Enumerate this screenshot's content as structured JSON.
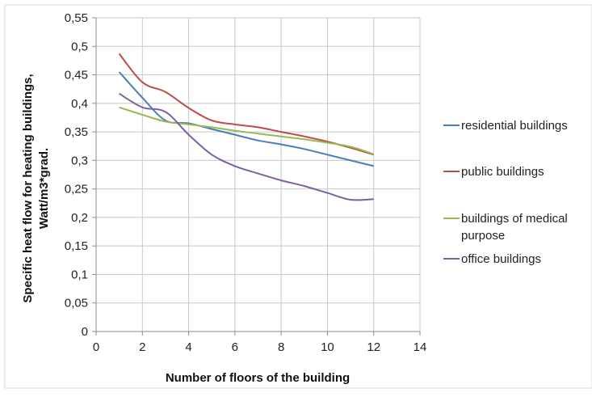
{
  "chart_data": {
    "type": "line",
    "title": "",
    "xlabel": "Number of floors of the building",
    "ylabel_lines": [
      "Specific heat flow for heating buildings,",
      "Watt/m3*grad."
    ],
    "xlim": [
      0,
      14
    ],
    "ylim": [
      0,
      0.55
    ],
    "x_ticks": [
      0,
      2,
      4,
      6,
      8,
      10,
      12,
      14
    ],
    "y_ticks": [
      0,
      0.05,
      0.1,
      0.15,
      0.2,
      0.25,
      0.3,
      0.35,
      0.4,
      0.45,
      0.5,
      0.55
    ],
    "x_tick_labels": [
      "0",
      "2",
      "4",
      "6",
      "8",
      "10",
      "12",
      "14"
    ],
    "y_tick_labels": [
      "0",
      "0,05",
      "0,1",
      "0,15",
      "0,2",
      "0,25",
      "0,3",
      "0,35",
      "0,4",
      "0,45",
      "0,5",
      "0,55"
    ],
    "grid": "horizontal and vertical",
    "legend_position": "right",
    "series": [
      {
        "name": "residential buildings",
        "color": "#4a7ebb",
        "x": [
          1,
          2,
          3,
          4,
          5,
          6,
          7,
          8,
          9,
          10,
          11,
          12
        ],
        "y": [
          0.455,
          0.41,
          0.37,
          0.365,
          0.355,
          0.345,
          0.335,
          0.328,
          0.32,
          0.31,
          0.3,
          0.29
        ]
      },
      {
        "name": "public buildings",
        "color": "#be4b48",
        "x": [
          1,
          2,
          3,
          4,
          5,
          6,
          7,
          8,
          9,
          10,
          11,
          12
        ],
        "y": [
          0.487,
          0.437,
          0.42,
          0.392,
          0.37,
          0.363,
          0.358,
          0.35,
          0.342,
          0.333,
          0.322,
          0.31
        ]
      },
      {
        "name": "buildings of medical purpose",
        "name_lines": [
          "buildings of medical",
          "purpose"
        ],
        "color": "#98b954",
        "x": [
          1,
          2,
          3,
          4,
          5,
          6,
          7,
          8,
          9,
          10,
          11,
          12
        ],
        "y": [
          0.393,
          0.38,
          0.368,
          0.363,
          0.358,
          0.352,
          0.347,
          0.342,
          0.337,
          0.331,
          0.324,
          0.311
        ]
      },
      {
        "name": "office buildings",
        "color": "#7d60a0",
        "x": [
          1,
          2,
          3,
          4,
          5,
          6,
          7,
          8,
          9,
          10,
          11,
          12
        ],
        "y": [
          0.417,
          0.393,
          0.385,
          0.345,
          0.31,
          0.29,
          0.277,
          0.265,
          0.255,
          0.243,
          0.231,
          0.232
        ]
      }
    ]
  }
}
